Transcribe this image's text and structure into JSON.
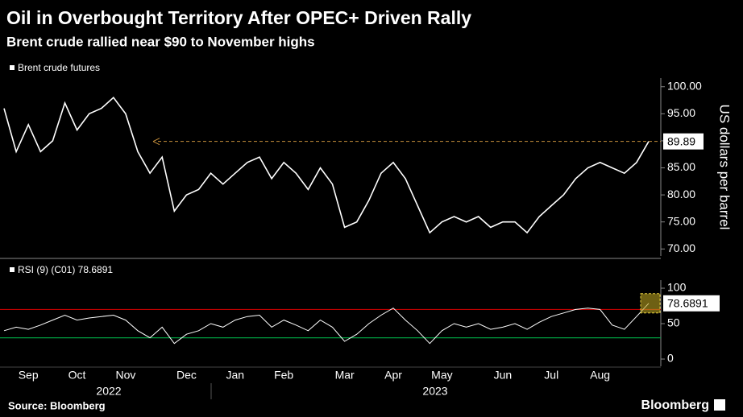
{
  "title": "Oil in Overbought Territory After OPEC+ Driven Rally",
  "subtitle": "Brent crude rallied near $90 to November highs",
  "source": "Source: Bloomberg",
  "brand": "Bloomberg",
  "chart_data": [
    {
      "type": "line",
      "y_label": "US dollars per barrel",
      "ylim": [
        68.7,
        101.6
      ],
      "yticks": [
        {
          "value": 70,
          "label": "70.00"
        },
        {
          "value": 75,
          "label": "75.00"
        },
        {
          "value": 80,
          "label": "80.00"
        },
        {
          "value": 85,
          "label": "85.00"
        },
        {
          "value": 90,
          "label": "90.00"
        },
        {
          "value": 95,
          "label": "95.00"
        },
        {
          "value": 100,
          "label": "100.00"
        }
      ],
      "series": [
        {
          "name": "Brent crude futures",
          "color": "#ffffff",
          "values": [
            96,
            88,
            93,
            88,
            90,
            97,
            92,
            95,
            96,
            98,
            95,
            88,
            84,
            87,
            77,
            80,
            81,
            84,
            82,
            84,
            86,
            87,
            83,
            86,
            84,
            81,
            85,
            82,
            74,
            75,
            79,
            84,
            86,
            83,
            78,
            73,
            75,
            76,
            75,
            76,
            74,
            75,
            75,
            73,
            76,
            78,
            80,
            83,
            85,
            86,
            85,
            84,
            86,
            89.89
          ]
        }
      ],
      "last_value_line_color": "#c8903c"
    },
    {
      "type": "line",
      "ylim": [
        -10.2,
        111.4
      ],
      "yticks": [
        0,
        50,
        100
      ],
      "reference_lines": [
        {
          "value": 70,
          "color": "#c00000"
        },
        {
          "value": 30,
          "color": "#00a040"
        }
      ],
      "categories": [
        null,
        null,
        "Sep",
        null,
        null,
        null,
        "Oct",
        null,
        null,
        null,
        "Nov",
        null,
        null,
        null,
        null,
        "Dec",
        null,
        null,
        null,
        "Jan",
        null,
        null,
        null,
        "Feb",
        null,
        null,
        null,
        null,
        "Mar",
        null,
        null,
        null,
        "Apr",
        null,
        null,
        null,
        "May",
        null,
        null,
        null,
        null,
        "Jun",
        null,
        null,
        null,
        "Jul",
        null,
        null,
        null,
        "Aug",
        null,
        null,
        null,
        null
      ],
      "x_group_labels": [
        "2022",
        "2023"
      ],
      "series": [
        {
          "name": "RSI (9) (C01) 78.6891",
          "color": "#ffffff",
          "values": [
            40,
            45,
            42,
            48,
            55,
            62,
            55,
            58,
            60,
            62,
            55,
            40,
            30,
            45,
            22,
            35,
            40,
            50,
            45,
            55,
            60,
            62,
            45,
            55,
            48,
            40,
            55,
            45,
            25,
            35,
            50,
            62,
            72,
            55,
            40,
            22,
            40,
            50,
            45,
            50,
            42,
            45,
            50,
            42,
            52,
            60,
            65,
            70,
            72,
            70,
            48,
            42,
            60,
            78.6891
          ]
        }
      ],
      "highlight_color": "#b8a020"
    }
  ]
}
